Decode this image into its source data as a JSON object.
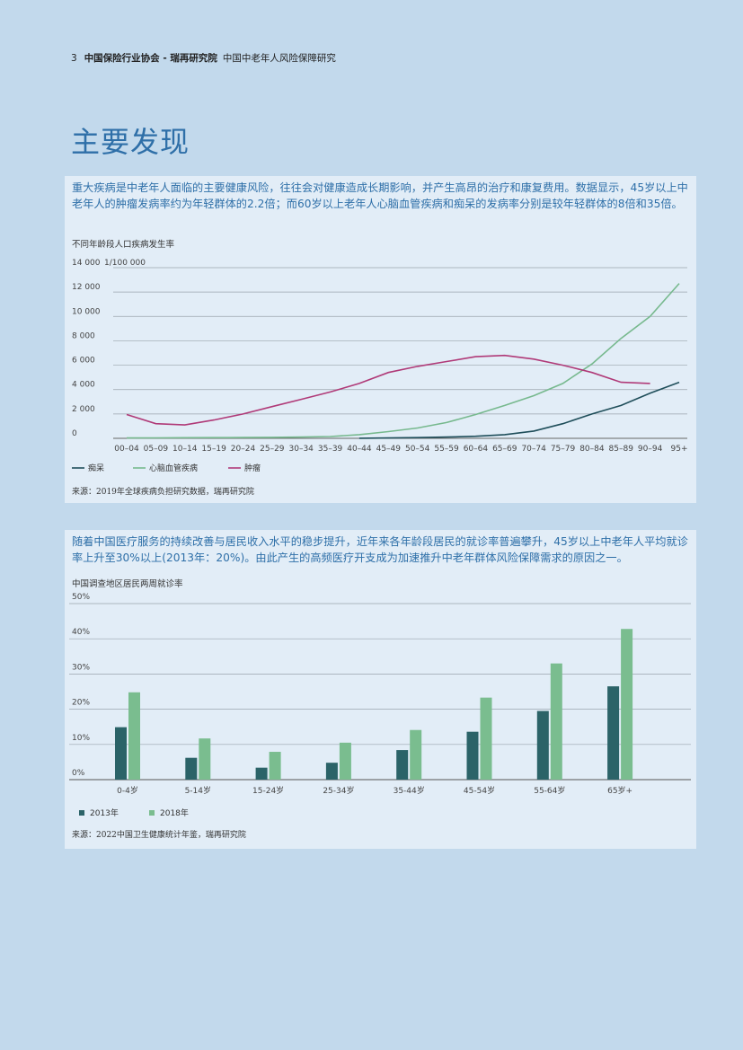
{
  "header": {
    "page_number": "3",
    "org": "中国保险行业协会 - 瑞再研究院",
    "report": "中国中老年人风险保障研究"
  },
  "title": "主要发现",
  "panel1": {
    "intro": "重大疾病是中老年人面临的主要健康风险，往往会对健康造成长期影响，并产生高昂的治疗和康复费用。数据显示，45岁以上中老年人的肿瘤发病率约为年轻群体的2.2倍；而60岁以上老年人心脑血管疾病和痴呆的发病率分别是较年轻群体的8倍和35倍。",
    "caption": "不同年龄段人口疾病发生率",
    "source": "来源：2019年全球疾病负担研究数据，瑞再研究院"
  },
  "panel2": {
    "intro": "随着中国医疗服务的持续改善与居民收入水平的稳步提升，近年来各年龄段居民的就诊率普遍攀升，45岁以上中老年人平均就诊率上升至30%以上(2013年：20%)。由此产生的高频医疗开支成为加速推升中老年群体风险保障需求的原因之一。",
    "caption": "中国调查地区居民两周就诊率",
    "source": "来源：2022中国卫生健康统计年鉴，瑞再研究院"
  },
  "chart_data": [
    {
      "type": "line",
      "title": "不同年龄段人口疾病发生率",
      "ylabel": "1/100 000",
      "ylim": [
        0,
        14000
      ],
      "yticks": [
        "0",
        "2 000",
        "4 000",
        "6 000",
        "8 000",
        "10 000",
        "12 000",
        "14 000"
      ],
      "categories": [
        "00–04",
        "05–09",
        "10–14",
        "15–19",
        "20–24",
        "25–29",
        "30–34",
        "35–39",
        "40–44",
        "45–49",
        "50–54",
        "55–59",
        "60–64",
        "65–69",
        "70–74",
        "75–79",
        "80–84",
        "85–89",
        "90–94",
        "95+"
      ],
      "grid": true,
      "legend_position": "bottom-left",
      "series": [
        {
          "name": "痴呆",
          "color": "#1f4e5a",
          "values": [
            null,
            null,
            null,
            null,
            null,
            null,
            null,
            null,
            10,
            30,
            60,
            100,
            170,
            300,
            600,
            1200,
            2000,
            2700,
            3700,
            4600
          ]
        },
        {
          "name": "心脑血管疾病",
          "color": "#77b98e",
          "values": [
            30,
            40,
            50,
            60,
            70,
            80,
            100,
            150,
            300,
            550,
            850,
            1300,
            1950,
            2700,
            3500,
            4500,
            6100,
            8200,
            10000,
            12700
          ]
        },
        {
          "name": "肿瘤",
          "color": "#b03a78",
          "values": [
            1950,
            1200,
            1100,
            1500,
            2000,
            2600,
            3200,
            3800,
            4500,
            5400,
            5900,
            6300,
            6700,
            6800,
            6500,
            6000,
            5400,
            4600,
            4500,
            null
          ]
        }
      ]
    },
    {
      "type": "bar",
      "title": "中国调查地区居民两周就诊率",
      "ylim": [
        0,
        50
      ],
      "yticks": [
        "0%",
        "10%",
        "20%",
        "30%",
        "40%",
        "50%"
      ],
      "categories": [
        "0-4岁",
        "5-14岁",
        "15-24岁",
        "25-34岁",
        "35-44岁",
        "45-54岁",
        "55-64岁",
        "65岁+"
      ],
      "grid": true,
      "legend_position": "bottom-left",
      "series": [
        {
          "name": "2013年",
          "color": "#2b6368",
          "values": [
            14.9,
            6.2,
            3.4,
            4.8,
            8.4,
            13.6,
            19.5,
            26.5
          ]
        },
        {
          "name": "2018年",
          "color": "#7abd8f",
          "values": [
            24.8,
            11.7,
            7.9,
            10.5,
            14.1,
            23.3,
            33.0,
            42.8
          ]
        }
      ]
    }
  ]
}
